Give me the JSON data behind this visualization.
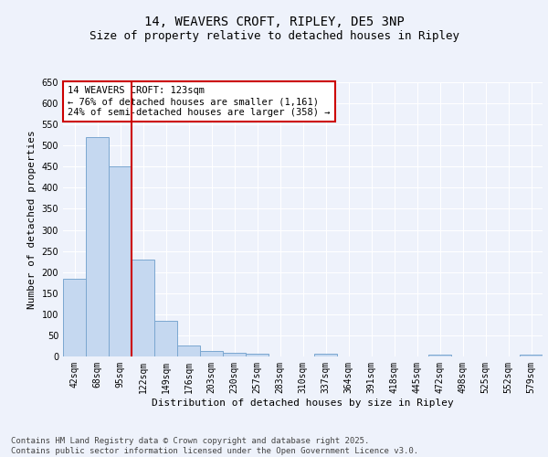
{
  "title": "14, WEAVERS CROFT, RIPLEY, DE5 3NP",
  "subtitle": "Size of property relative to detached houses in Ripley",
  "xlabel": "Distribution of detached houses by size in Ripley",
  "ylabel": "Number of detached properties",
  "categories": [
    "42sqm",
    "68sqm",
    "95sqm",
    "122sqm",
    "149sqm",
    "176sqm",
    "203sqm",
    "230sqm",
    "257sqm",
    "283sqm",
    "310sqm",
    "337sqm",
    "364sqm",
    "391sqm",
    "418sqm",
    "445sqm",
    "472sqm",
    "498sqm",
    "525sqm",
    "552sqm",
    "579sqm"
  ],
  "values": [
    184,
    519,
    450,
    230,
    85,
    27,
    13,
    8,
    6,
    0,
    0,
    7,
    0,
    0,
    0,
    0,
    4,
    0,
    0,
    0,
    4
  ],
  "bar_color": "#c5d8f0",
  "bar_edge_color": "#7ba7d0",
  "background_color": "#eef2fb",
  "grid_color": "#ffffff",
  "vline_x": 2.5,
  "vline_color": "#cc0000",
  "annotation_text": "14 WEAVERS CROFT: 123sqm\n← 76% of detached houses are smaller (1,161)\n24% of semi-detached houses are larger (358) →",
  "annotation_box_color": "#ffffff",
  "annotation_box_edge": "#cc0000",
  "footer_text": "Contains HM Land Registry data © Crown copyright and database right 2025.\nContains public sector information licensed under the Open Government Licence v3.0.",
  "ylim": [
    0,
    650
  ],
  "yticks": [
    0,
    50,
    100,
    150,
    200,
    250,
    300,
    350,
    400,
    450,
    500,
    550,
    600,
    650
  ],
  "title_fontsize": 10,
  "subtitle_fontsize": 9,
  "axis_label_fontsize": 8,
  "tick_fontsize": 7,
  "annotation_fontsize": 7.5,
  "footer_fontsize": 6.5
}
